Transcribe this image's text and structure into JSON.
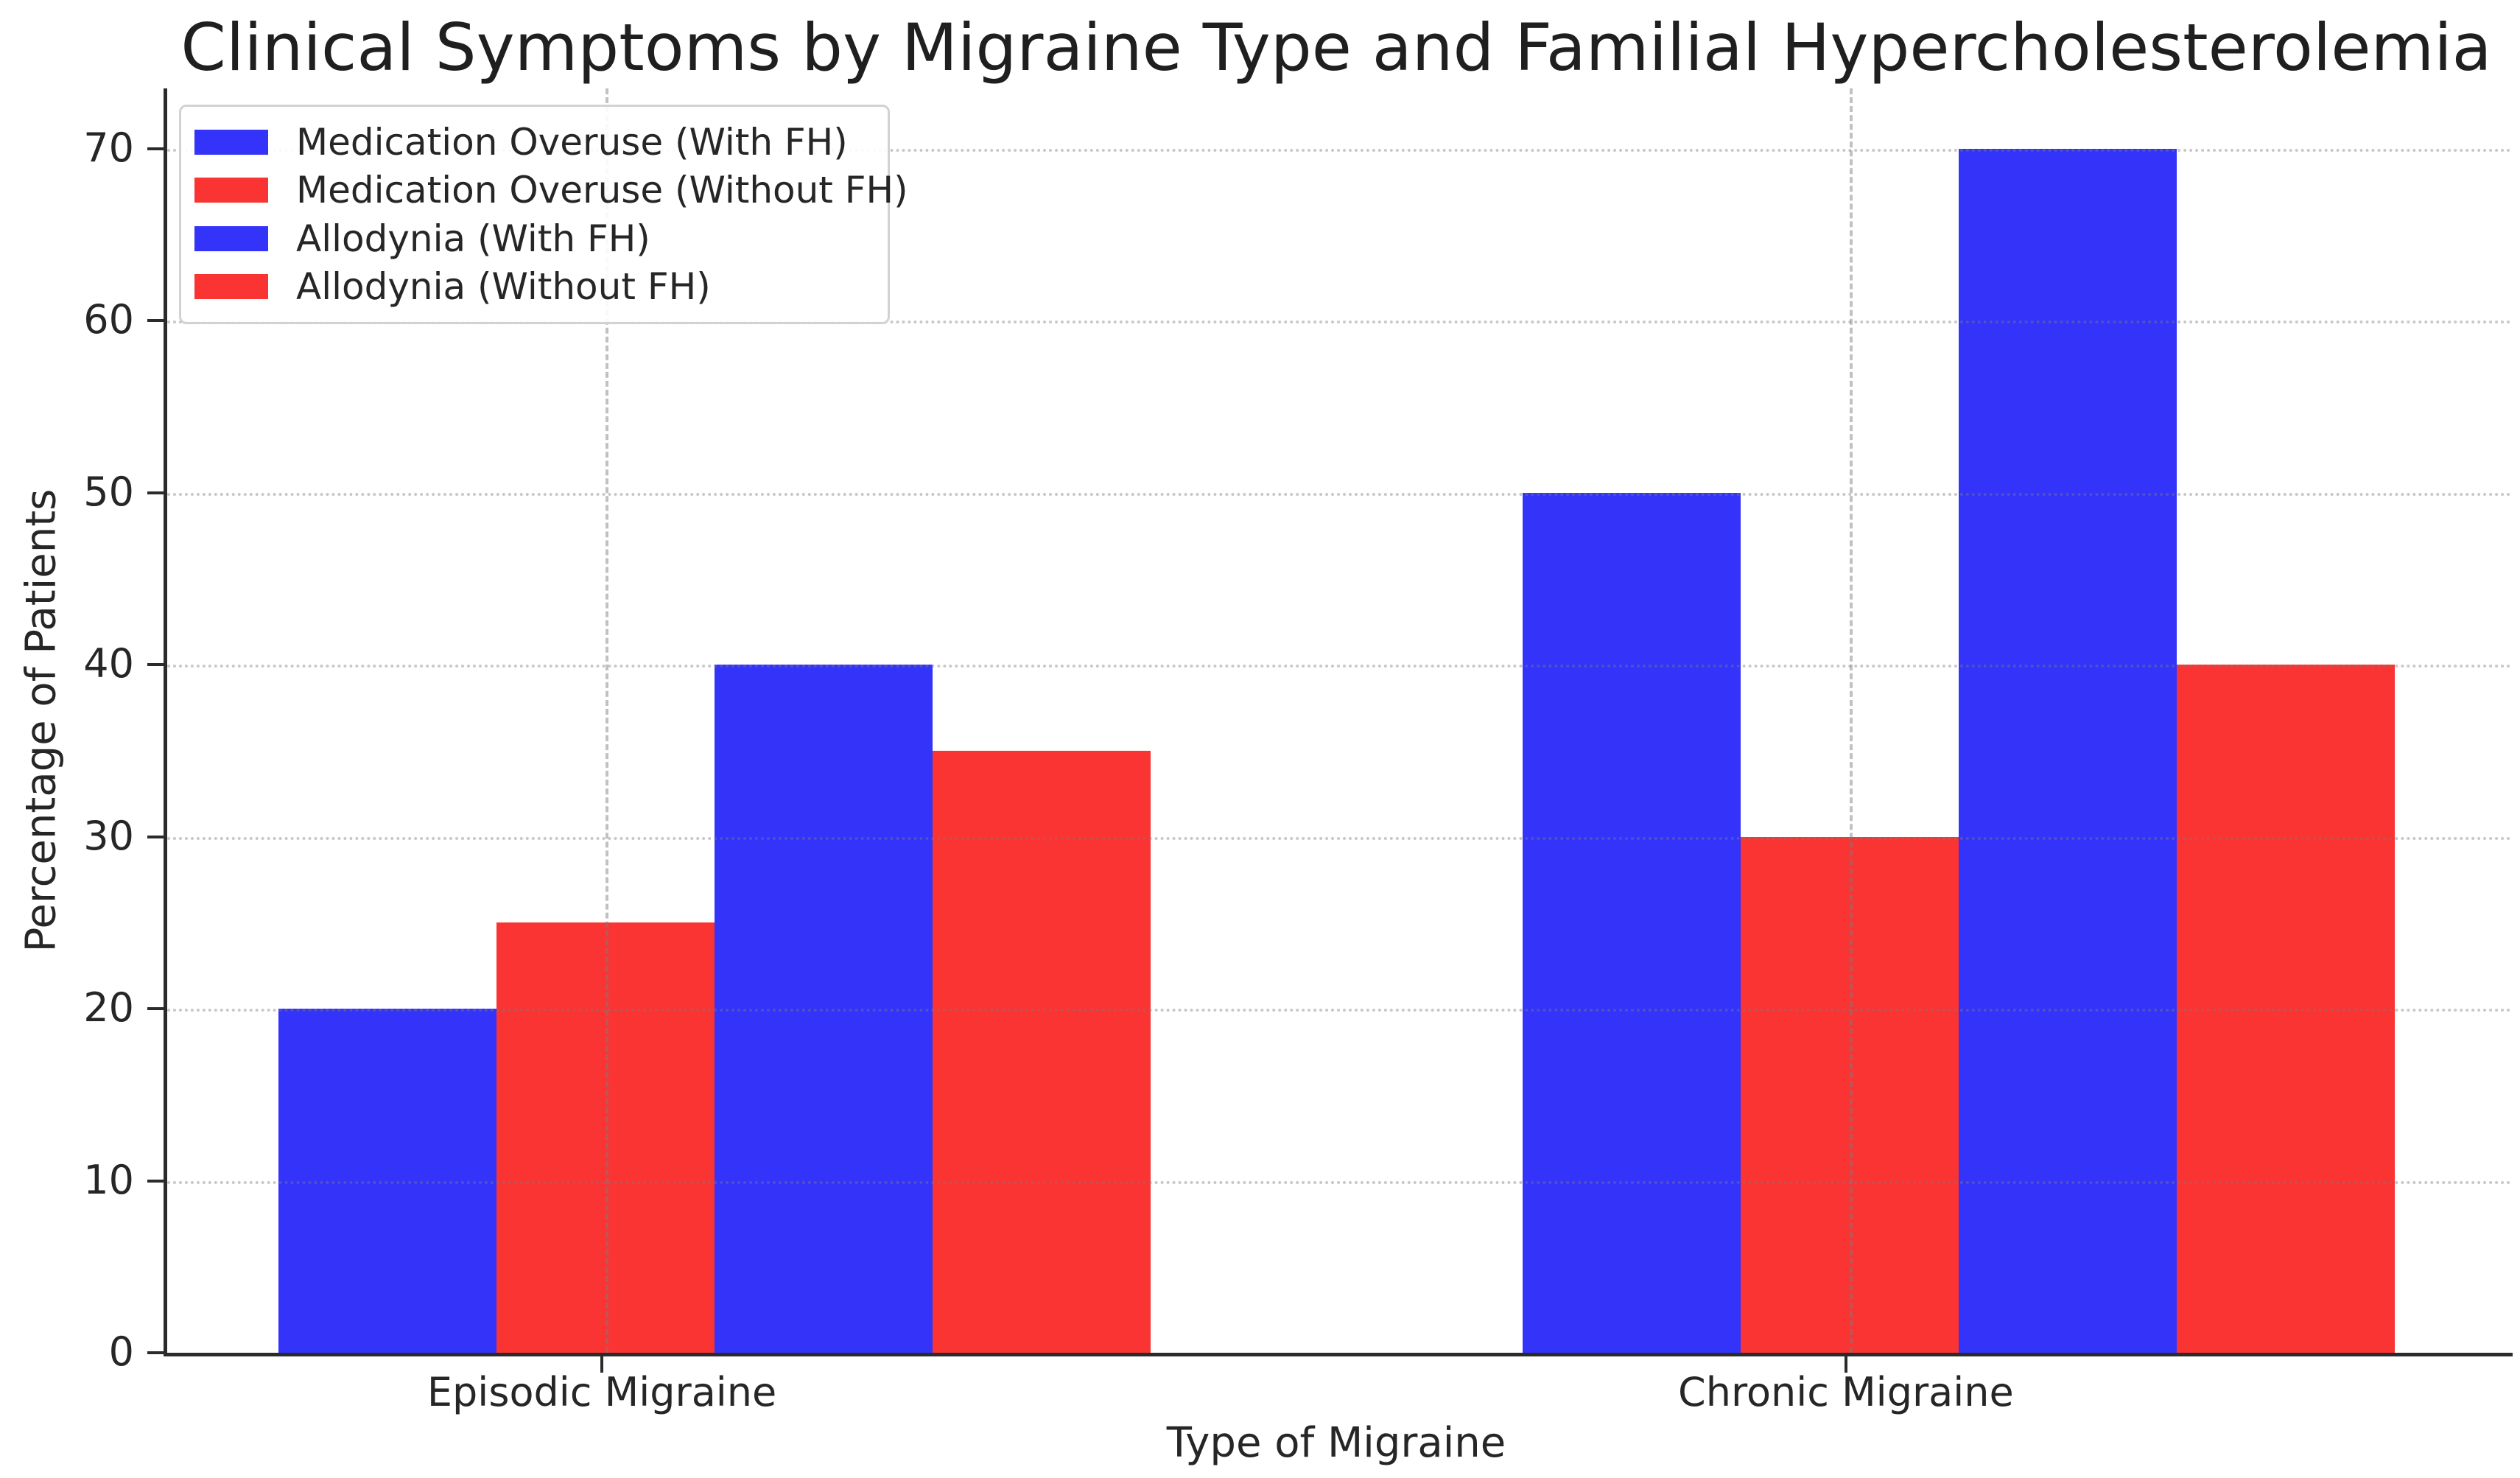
{
  "chart_data": {
    "type": "bar",
    "title": "Clinical Symptoms by Migraine Type and Familial Hypercholesterolemia",
    "xlabel": "Type of Migraine",
    "ylabel": "Percentage of Patients",
    "categories": [
      "Episodic Migraine",
      "Chronic Migraine"
    ],
    "series": [
      {
        "name": "Medication Overuse (With FH)",
        "color": "#3333fa",
        "values": [
          20,
          50
        ]
      },
      {
        "name": "Medication Overuse (Without FH)",
        "color": "#fa3333",
        "values": [
          25,
          30
        ]
      },
      {
        "name": "Allodynia (With FH)",
        "color": "#3333fa",
        "values": [
          40,
          70
        ]
      },
      {
        "name": "Allodynia (Without FH)",
        "color": "#fa3333",
        "values": [
          35,
          40
        ]
      }
    ],
    "yticks": [
      0,
      10,
      20,
      30,
      40,
      50,
      60,
      70
    ],
    "ylim": [
      0,
      73.5
    ],
    "legend_position": "upper left",
    "grid": {
      "horizontal_style": "dotted",
      "vertical_style": "dashed",
      "color": "#bdbdbd"
    },
    "colors": {
      "with_fh": "#3333fa",
      "without_fh": "#fa3333",
      "text": "#262626",
      "spine": "#2b2b2b",
      "background": "#ffffff"
    }
  }
}
